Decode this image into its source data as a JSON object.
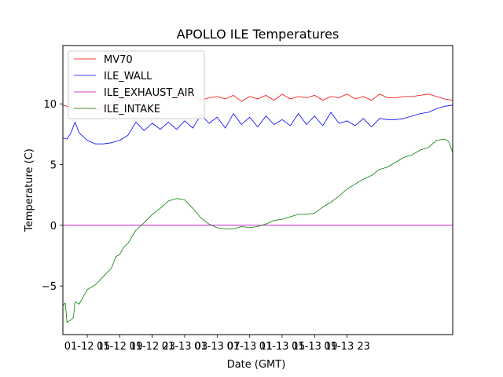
{
  "chart_data": {
    "type": "line",
    "title": "APOLLO ILE Temperatures",
    "xlabel": "Date (GMT)",
    "ylabel": "Temperature (C)",
    "xlim": [
      0,
      48
    ],
    "ylim": [
      -9,
      14.8
    ],
    "x_unit": "hours since 01-12 12:00 GMT",
    "x_ticks": [
      {
        "x": 3,
        "label": "01-12 15"
      },
      {
        "x": 7,
        "label": "01-12 19"
      },
      {
        "x": 11,
        "label": "01-12 23"
      },
      {
        "x": 15,
        "label": "01-13 03"
      },
      {
        "x": 19,
        "label": "01-13 07"
      },
      {
        "x": 23,
        "label": "01-13 11"
      },
      {
        "x": 27,
        "label": "01-13 15"
      },
      {
        "x": 31,
        "label": "01-13 19"
      },
      {
        "x": 35,
        "label": "01-13 23"
      }
    ],
    "y_ticks": [
      {
        "y": -5,
        "label": "−5"
      },
      {
        "y": 0,
        "label": "0"
      },
      {
        "y": 5,
        "label": "5"
      },
      {
        "y": 10,
        "label": "10"
      }
    ],
    "legend_position": "top-left",
    "series": [
      {
        "name": "MV70",
        "color": "#ff0000",
        "x": [
          0,
          0.5,
          1,
          2,
          3,
          4,
          5,
          6,
          7,
          8,
          9,
          10,
          11,
          12,
          13,
          14,
          15,
          16,
          17,
          18,
          19,
          20,
          21,
          22,
          23,
          24,
          25,
          26,
          27,
          28,
          29,
          30,
          31,
          32,
          33,
          34,
          35,
          36,
          37,
          38,
          39,
          40,
          41,
          42,
          43,
          44,
          45,
          46,
          47,
          48
        ],
        "y": [
          9.9,
          9.8,
          9.7,
          9.6,
          9.6,
          9.5,
          9.7,
          10.0,
          10.4,
          10.5,
          10.3,
          10.6,
          10.5,
          10.7,
          10.4,
          10.6,
          10.5,
          10.7,
          10.3,
          10.5,
          10.6,
          10.4,
          10.7,
          10.2,
          10.6,
          10.4,
          10.7,
          10.3,
          10.8,
          10.4,
          10.6,
          10.5,
          10.7,
          10.3,
          10.6,
          10.5,
          10.8,
          10.4,
          10.6,
          10.3,
          10.8,
          10.5,
          10.5,
          10.6,
          10.6,
          10.7,
          10.8,
          10.6,
          10.4,
          10.3
        ]
      },
      {
        "name": "ILE_WALL",
        "color": "#0000ff",
        "x": [
          0,
          0.5,
          1,
          1.5,
          2,
          3,
          4,
          5,
          6,
          7,
          7.5,
          8,
          9,
          10,
          11,
          12,
          13,
          14,
          15,
          16,
          17,
          18,
          19,
          20,
          21,
          22,
          23,
          24,
          25,
          26,
          27,
          28,
          29,
          30,
          31,
          32,
          33,
          34,
          35,
          36,
          37,
          38,
          39,
          40,
          41,
          42,
          43,
          44,
          45,
          46,
          47,
          48
        ],
        "y": [
          7.2,
          7.1,
          7.6,
          8.5,
          7.6,
          7.0,
          6.7,
          6.7,
          6.8,
          7.0,
          7.2,
          7.4,
          8.5,
          7.8,
          8.4,
          7.9,
          8.5,
          7.9,
          8.6,
          8.0,
          9.1,
          8.4,
          8.9,
          8.0,
          9.2,
          8.3,
          8.9,
          8.1,
          9.0,
          8.3,
          8.7,
          8.2,
          9.2,
          8.3,
          9.0,
          8.2,
          9.3,
          8.4,
          8.6,
          8.2,
          8.8,
          8.1,
          8.8,
          8.7,
          8.7,
          8.8,
          9.0,
          9.2,
          9.3,
          9.6,
          9.8,
          9.9
        ]
      },
      {
        "name": "ILE_EXHAUST_AIR",
        "color": "#bf00bf",
        "x": [
          0,
          48
        ],
        "y": [
          0.0,
          0.0
        ]
      },
      {
        "name": "ILE_INTAKE",
        "color": "#008000",
        "x": [
          0,
          0.3,
          0.5,
          0.7,
          1,
          1.3,
          1.5,
          2,
          3,
          4,
          5,
          6,
          6.5,
          7,
          7.5,
          8,
          9,
          10,
          11,
          12,
          13,
          14,
          15,
          16,
          17,
          18,
          19,
          20,
          21,
          22,
          23,
          24,
          25,
          26,
          27,
          28,
          29,
          30,
          31,
          32,
          33,
          34,
          35,
          36,
          37,
          38,
          39,
          40,
          41,
          42,
          43,
          44,
          45,
          46,
          47,
          47.5,
          48
        ],
        "y": [
          -6.6,
          -6.4,
          -8.0,
          -7.9,
          -7.8,
          -7.6,
          -6.3,
          -6.5,
          -5.3,
          -4.9,
          -4.2,
          -3.5,
          -2.6,
          -2.4,
          -1.8,
          -1.5,
          -0.4,
          0.2,
          0.9,
          1.4,
          2.0,
          2.2,
          2.1,
          1.4,
          0.6,
          0.1,
          -0.2,
          -0.3,
          -0.3,
          -0.1,
          -0.2,
          -0.1,
          0.1,
          0.4,
          0.5,
          0.7,
          0.9,
          0.9,
          1.0,
          1.5,
          1.9,
          2.4,
          3.0,
          3.4,
          3.8,
          4.1,
          4.6,
          4.8,
          5.2,
          5.6,
          5.8,
          6.2,
          6.4,
          7.0,
          7.1,
          6.9,
          6.0
        ]
      }
    ]
  }
}
